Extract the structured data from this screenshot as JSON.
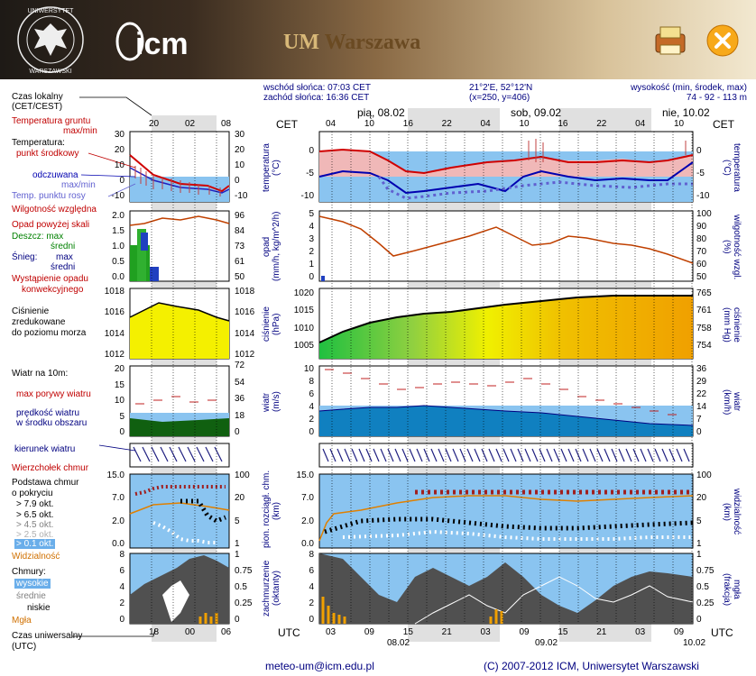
{
  "header": {
    "seal_text": "UNIWERSYTET WARSZAWSKI",
    "icm_logo": "icm",
    "title_um": "UM",
    "title_city": "Warszawa",
    "print_icon": "print-icon",
    "close_icon": "close-icon"
  },
  "info": {
    "sunrise": "wschód słońca: 07:03 CET",
    "sunset": "zachód słońca: 16:36 CET",
    "coords": "21°2'E, 52°12'N",
    "grid": "(x=250,  y=406)",
    "elev_label": "wysokość (min, środek, max)",
    "elev_values": "74 - 92 - 113 m"
  },
  "legend": {
    "local_time": "Czas lokalny",
    "local_time2": "(CET/CEST)",
    "soil_temp": "Temperatura gruntu",
    "soil_temp2": "max/min",
    "temperature": "Temperatura:",
    "mid_point": "punkt środkowy",
    "feels": "odczuwana",
    "feels_maxmin": "max/min",
    "dew": "Temp. punktu rosy",
    "humidity": "Wilgotność względna",
    "precip_over": "Opad powyżej skali",
    "rain_max": "Deszcz: max",
    "rain_mid": "średni",
    "snow_max": "max",
    "snow_label": "Śnieg:",
    "snow_mid": "średni",
    "conv1": "Wystąpienie opadu",
    "conv2": "konwekcyjnego",
    "press1": "Ciśnienie",
    "press2": "zredukowane",
    "press3": "do poziomu morza",
    "wind_title": "Wiatr na 10m:",
    "gust": "max porywy wiatru",
    "wind_speed1": "prędkość wiatru",
    "wind_speed2": "w środku obszaru",
    "wind_dir": "kierunek wiatru",
    "cloud_top": "Wierzchołek chmur",
    "cloud_base1": "Podstawa chmur",
    "cloud_base2": "o pokryciu",
    "okt79": "> 7.9 okt.",
    "okt65": "> 6.5 okt.",
    "okt45": "> 4.5 okt.",
    "okt25": "> 2.5 okt.",
    "okt01": "> 0.1 okt.",
    "visibility": "Widzialność",
    "clouds": "Chmury:",
    "high": "wysokie",
    "mid": "średnie",
    "low": "niskie",
    "fog": "Mgła",
    "utc_time": "Czas uniwersalny",
    "utc_time2": "(UTC)"
  },
  "small_axis": {
    "top_hours": [
      "20",
      "02",
      "08"
    ],
    "bottom_hours": [
      "18",
      "00",
      "06"
    ],
    "temp_left": [
      "30",
      "20",
      "10",
      "0",
      "-10"
    ],
    "temp_right": [
      "30",
      "20",
      "10",
      "0",
      "-10"
    ],
    "precip_left": [
      "2.0",
      "1.5",
      "1.0",
      "0.5",
      "0.0"
    ],
    "precip_right": [
      "96",
      "84",
      "73",
      "61",
      "50"
    ],
    "press_left": [
      "1018",
      "1016",
      "1014",
      "1012"
    ],
    "press_right": [
      "1018",
      "1016",
      "1014",
      "1012"
    ],
    "wind_left": [
      "20",
      "15",
      "10",
      "5",
      "0"
    ],
    "wind_right": [
      "72",
      "54",
      "36",
      "18",
      "0"
    ],
    "cloud_left": [
      "15.0",
      "7.0",
      "2.0",
      "0.0"
    ],
    "cloud_right": [
      "100",
      "20",
      "5",
      "1"
    ],
    "cover_left": [
      "8",
      "6",
      "4",
      "2",
      "0"
    ],
    "cover_right": [
      "1",
      "0.75",
      "0.5",
      "0.25",
      "0"
    ]
  },
  "main_axis": {
    "cet": "CET",
    "utc": "UTC",
    "day1": "pią, 08.02",
    "day2": "sob, 09.02",
    "day3": "nie, 10.02",
    "top_hours": [
      "04",
      "10",
      "16",
      "22",
      "04",
      "10",
      "16",
      "22",
      "04",
      "10"
    ],
    "bottom_hours": [
      "03",
      "09",
      "15",
      "21",
      "03",
      "09",
      "15",
      "21",
      "03",
      "09"
    ],
    "bottom_dates": [
      "08.02",
      "09.02",
      "10.02"
    ],
    "temp_left": [
      "0",
      "-5",
      "-10"
    ],
    "temp_right": [
      "0",
      "-5",
      "-10"
    ],
    "precip_left": [
      "5",
      "4",
      "3",
      "2",
      "1",
      "0"
    ],
    "precip_right": [
      "100",
      "90",
      "80",
      "70",
      "60",
      "50"
    ],
    "press_left": [
      "1020",
      "1015",
      "1010",
      "1005"
    ],
    "press_right": [
      "765",
      "761",
      "758",
      "754"
    ],
    "wind_left": [
      "10",
      "8",
      "6",
      "4",
      "2",
      "0"
    ],
    "wind_right": [
      "36",
      "29",
      "22",
      "14",
      "7",
      "0"
    ],
    "cloud_left": [
      "15.0",
      "7.0",
      "2.0",
      "0.0"
    ],
    "cloud_right": [
      "100",
      "20",
      "5",
      "1"
    ],
    "cover_left": [
      "8",
      "6",
      "4",
      "2",
      "0"
    ],
    "cover_right": [
      "1",
      "0.75",
      "0.5",
      "0.25",
      "0"
    ]
  },
  "right_labels": {
    "temp_l": "temperatura",
    "temp_u": "(°C)",
    "precip_l": "opad",
    "precip_u": "(mm/h, kg/m^2/h)",
    "hum_l": "wilgotność wzgl.",
    "hum_u": "(%)",
    "press_l": "ciśnienie",
    "press_u": "(hPa)",
    "press_r": "ciśnienie",
    "press_ru": "(mm Hg)",
    "wind_l": "wiatr",
    "wind_u": "(m/s)",
    "wind_r": "wiatr",
    "wind_ru": "(km/h)",
    "cloud_l": "pion. rozciągł. chm.",
    "cloud_u": "(km)",
    "vis_r": "widzialność",
    "vis_ru": "(km)",
    "cover_l": "zachmurzenie",
    "cover_u": "(oktanty)",
    "fog_r": "mgła",
    "fog_ru": "(frakcja)"
  },
  "footer": {
    "email": "meteo-um@icm.edu.pl",
    "copyright": "(C) 2007-2012 ICM, Uniwersytet Warszawski"
  }
}
